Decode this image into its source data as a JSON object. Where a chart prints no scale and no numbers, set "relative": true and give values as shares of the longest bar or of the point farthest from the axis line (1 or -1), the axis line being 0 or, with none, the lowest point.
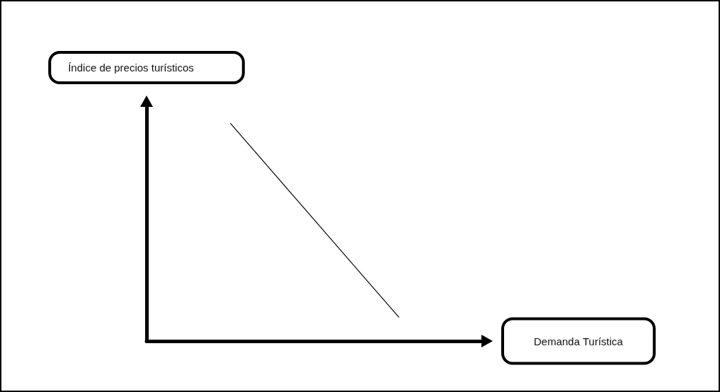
{
  "chart_data": {
    "type": "line",
    "xlabel": "Demanda Turística",
    "ylabel": "Índice de precios turísticos",
    "categories": [
      null,
      null
    ],
    "series": [
      {
        "color": "#000000",
        "values": [
          1,
          0.11
        ]
      }
    ],
    "relative": true,
    "grid": false,
    "marker": "none",
    "line_style": "solid"
  }
}
